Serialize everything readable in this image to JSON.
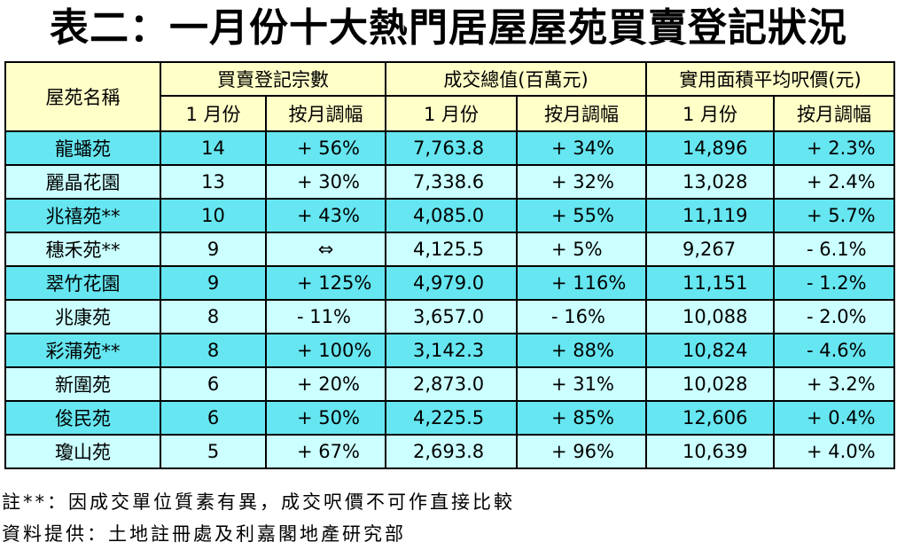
{
  "title": "表二：一月份十大熱門居屋屋苑買賣登記狀況",
  "headers": {
    "estate_name": "屋苑名稱",
    "registrations": "買賣登記宗數",
    "value": "成交總值(百萬元)",
    "price": "實用面積平均呎價(元)",
    "january": "1 月份",
    "mom_change": "按月調幅"
  },
  "rows": [
    {
      "name": "龍蟠苑",
      "count": "14",
      "count_chg": "+ 56%",
      "value": "7,763.8",
      "value_chg": "+ 34%",
      "price": "14,896",
      "price_chg": "+ 2.3%"
    },
    {
      "name": "麗晶花園",
      "count": "13",
      "count_chg": "+ 30%",
      "value": "7,338.6",
      "value_chg": "+ 32%",
      "price": "13,028",
      "price_chg": "+ 2.4%"
    },
    {
      "name": "兆禧苑**",
      "count": "10",
      "count_chg": "+ 43%",
      "value": "4,085.0",
      "value_chg": "+ 55%",
      "price": "11,119",
      "price_chg": "+ 5.7%"
    },
    {
      "name": "穗禾苑**",
      "count": "9",
      "count_chg": "⇔",
      "value": "4,125.5",
      "value_chg": "+ 5%",
      "price": "9,267",
      "price_chg": "- 6.1%"
    },
    {
      "name": "翠竹花園",
      "count": "9",
      "count_chg": "+ 125%",
      "value": "4,979.0",
      "value_chg": "+ 116%",
      "price": "11,151",
      "price_chg": "- 1.2%"
    },
    {
      "name": "兆康苑",
      "count": "8",
      "count_chg": "- 11%",
      "value": "3,657.0",
      "value_chg": "- 16%",
      "price": "10,088",
      "price_chg": "- 2.0%"
    },
    {
      "name": "彩蒲苑**",
      "count": "8",
      "count_chg": "+ 100%",
      "value": "3,142.3",
      "value_chg": "+ 88%",
      "price": "10,824",
      "price_chg": "- 4.6%"
    },
    {
      "name": "新圍苑",
      "count": "6",
      "count_chg": "+ 20%",
      "value": "2,873.0",
      "value_chg": "+ 31%",
      "price": "10,028",
      "price_chg": "+ 3.2%"
    },
    {
      "name": "俊民苑",
      "count": "6",
      "count_chg": "+ 50%",
      "value": "4,225.5",
      "value_chg": "+ 85%",
      "price": "12,606",
      "price_chg": "+ 0.4%"
    },
    {
      "name": "瓊山苑",
      "count": "5",
      "count_chg": "+ 67%",
      "value": "2,693.8",
      "value_chg": "+ 96%",
      "price": "10,639",
      "price_chg": "+ 4.0%"
    }
  ],
  "notes": {
    "note1": "註**：因成交單位質素有異，成交呎價不可作直接比較",
    "source": "資料提供：土地註冊處及利嘉閣地產研究部"
  },
  "colors": {
    "header_bg": "#ffffc8",
    "row_dark": "#66e6f0",
    "row_light": "#ccffff"
  }
}
